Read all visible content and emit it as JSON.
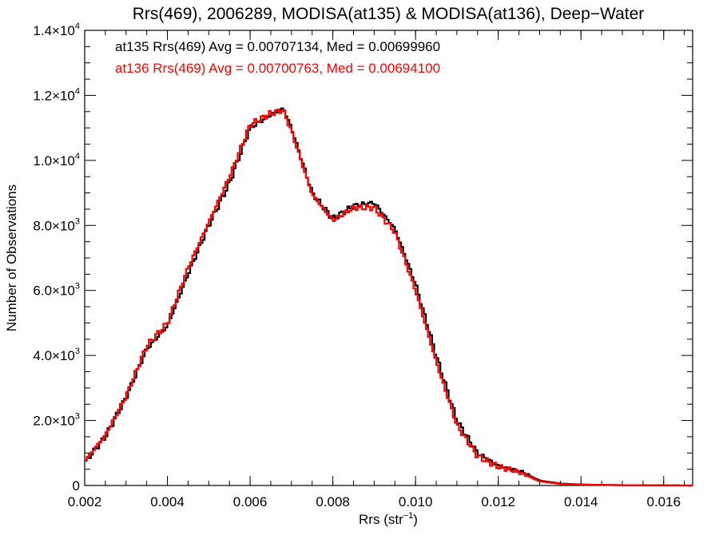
{
  "chart_data": {
    "type": "line",
    "title": "Rrs(469), 2006289, MODISA(at135) & MODISA(at136), Deep−Water",
    "xlabel_base": "Rrs (str",
    "xlabel_sup": "−1",
    "xlabel_close": ")",
    "ylabel": "Number of Observations",
    "xlim": [
      0.002,
      0.0167
    ],
    "ylim": [
      0,
      14000
    ],
    "x_ticks": [
      {
        "value": 0.002,
        "label": "0.002"
      },
      {
        "value": 0.004,
        "label": "0.004"
      },
      {
        "value": 0.006,
        "label": "0.006"
      },
      {
        "value": 0.008,
        "label": "0.008"
      },
      {
        "value": 0.01,
        "label": "0.010"
      },
      {
        "value": 0.012,
        "label": "0.012"
      },
      {
        "value": 0.014,
        "label": "0.014"
      },
      {
        "value": 0.016,
        "label": "0.016"
      }
    ],
    "y_ticks": [
      {
        "value": 0,
        "label": "0",
        "exp": ""
      },
      {
        "value": 2000,
        "label": "2.0×10",
        "exp": "3"
      },
      {
        "value": 4000,
        "label": "4.0×10",
        "exp": "3"
      },
      {
        "value": 6000,
        "label": "6.0×10",
        "exp": "3"
      },
      {
        "value": 8000,
        "label": "8.0×10",
        "exp": "3"
      },
      {
        "value": 10000,
        "label": "1.0×10",
        "exp": "4"
      },
      {
        "value": 12000,
        "label": "1.2×10",
        "exp": "4"
      },
      {
        "value": 14000,
        "label": "1.4×10",
        "exp": "4"
      }
    ],
    "annotations": [
      {
        "text": "at135 Rrs(469) Avg = 0.00707134, Med = 0.00699960",
        "color": "#000000"
      },
      {
        "text": "at136 Rrs(469) Avg = 0.00700763, Med = 0.00694100",
        "color": "#ff0000"
      }
    ],
    "series": [
      {
        "color": "#000000",
        "x": [
          0.002,
          0.0025,
          0.003,
          0.0035,
          0.004,
          0.0045,
          0.005,
          0.0055,
          0.006,
          0.0065,
          0.0068,
          0.007,
          0.0075,
          0.008,
          0.0085,
          0.009,
          0.0095,
          0.01,
          0.0105,
          0.011,
          0.0115,
          0.012,
          0.0125,
          0.013,
          0.0135,
          0.014,
          0.015,
          0.016,
          0.0167
        ],
        "y": [
          700,
          1500,
          2700,
          4200,
          4900,
          6500,
          8000,
          9300,
          11000,
          11400,
          11600,
          11000,
          9000,
          8200,
          8600,
          8700,
          7900,
          6200,
          4000,
          2000,
          1000,
          600,
          450,
          150,
          60,
          30,
          10,
          5,
          0
        ]
      },
      {
        "color": "#ff0000",
        "x": [
          0.002,
          0.0025,
          0.003,
          0.0035,
          0.004,
          0.0045,
          0.005,
          0.0055,
          0.006,
          0.0065,
          0.0068,
          0.007,
          0.0075,
          0.008,
          0.0085,
          0.009,
          0.0095,
          0.01,
          0.0105,
          0.011,
          0.0115,
          0.012,
          0.0125,
          0.013,
          0.0135,
          0.014,
          0.015,
          0.016,
          0.0167
        ],
        "y": [
          750,
          1550,
          2750,
          4300,
          5000,
          6700,
          8100,
          9500,
          11100,
          11450,
          11550,
          10900,
          8950,
          8150,
          8550,
          8550,
          7800,
          6000,
          3800,
          1850,
          900,
          580,
          420,
          130,
          50,
          25,
          10,
          5,
          0
        ]
      }
    ]
  }
}
